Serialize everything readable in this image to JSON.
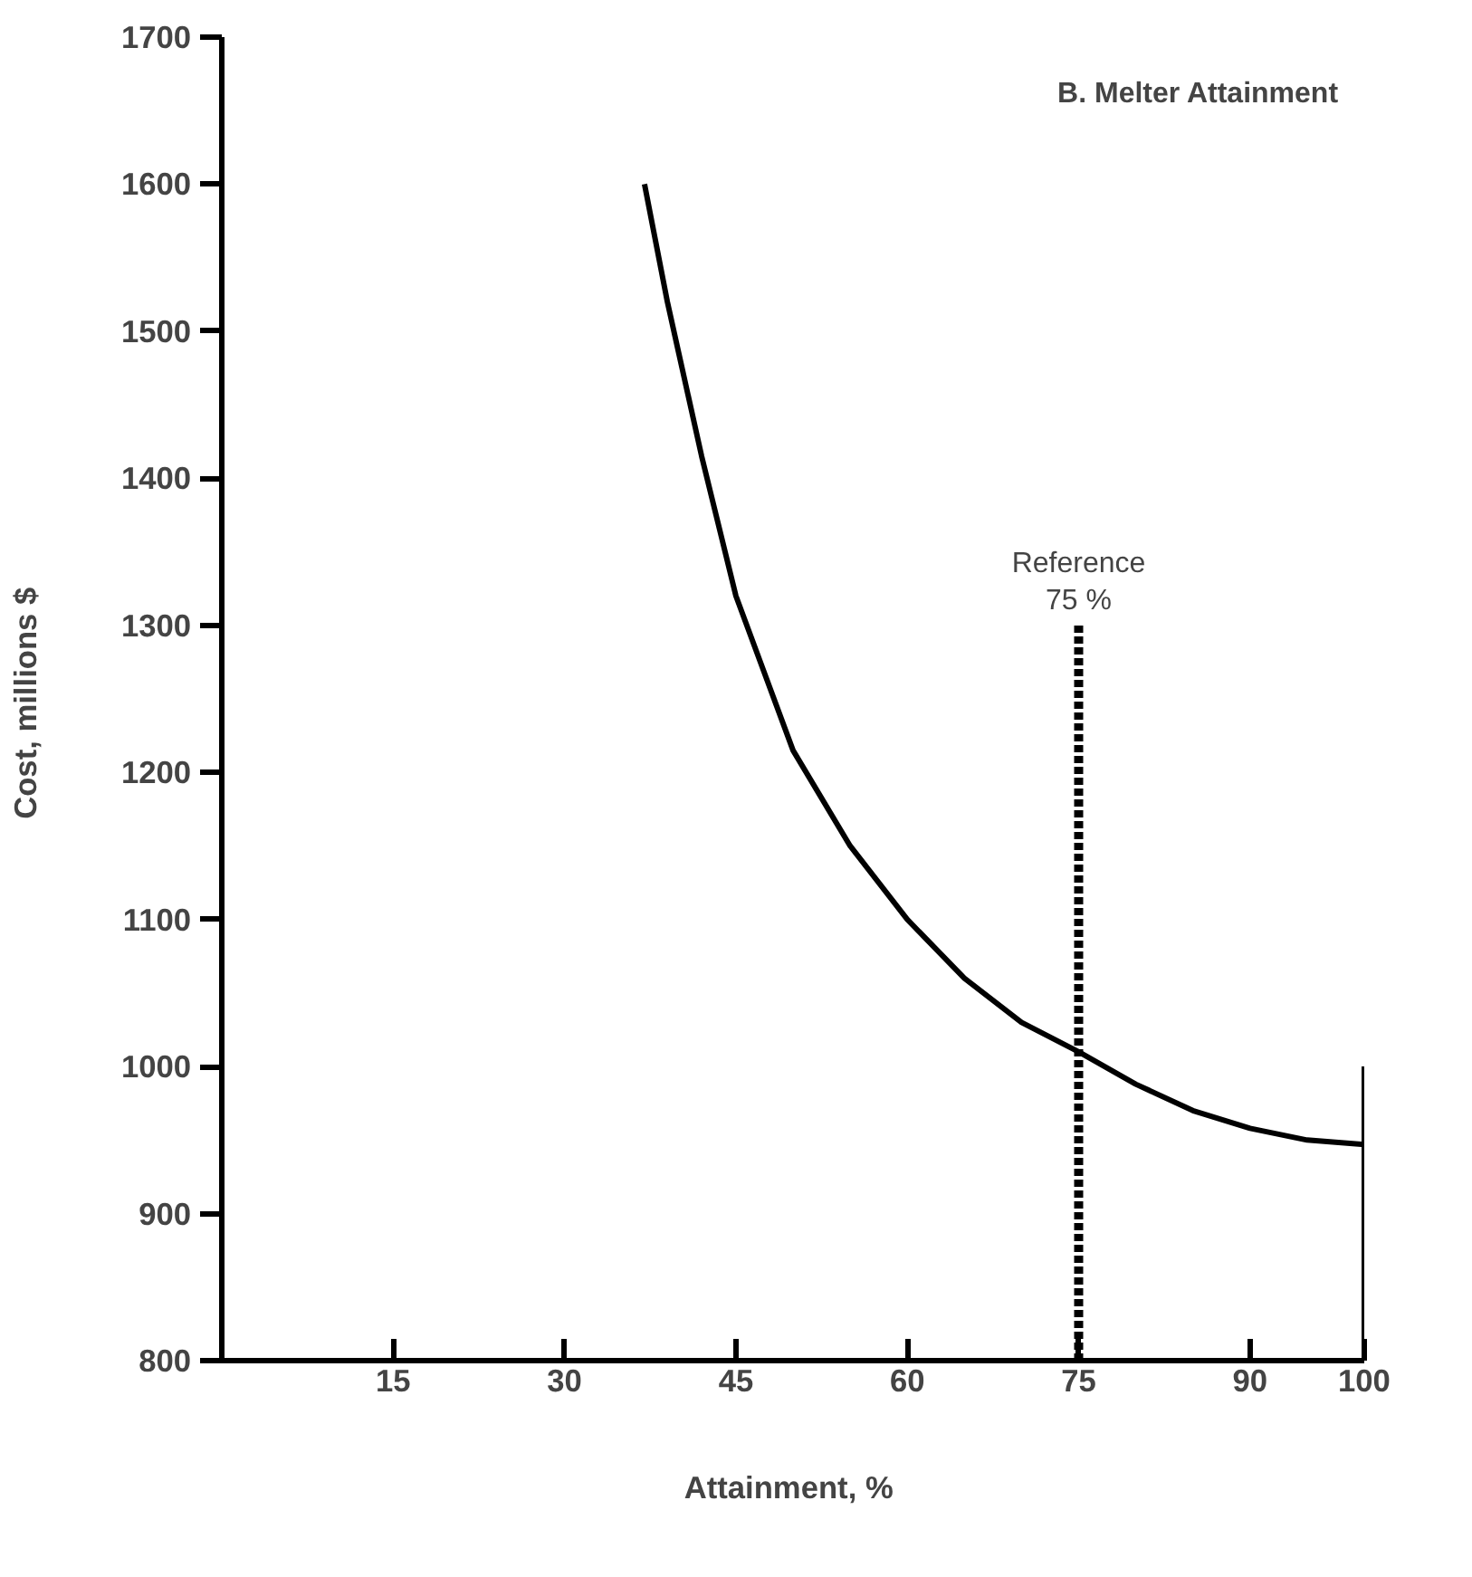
{
  "chart_data": {
    "type": "line",
    "title": "B.   Melter Attainment",
    "xlabel": "Attainment,  %",
    "ylabel": "Cost,  millions $",
    "xlim": [
      0,
      100
    ],
    "ylim": [
      800,
      1700
    ],
    "xticks": [
      15,
      30,
      45,
      60,
      75,
      90,
      100
    ],
    "yticks": [
      800,
      900,
      1000,
      1100,
      1200,
      1300,
      1400,
      1500,
      1600,
      1700
    ],
    "grid": false,
    "marker": "none",
    "series": [
      {
        "color": "#000000",
        "line_style": "solid",
        "x": [
          37,
          38,
          39,
          40,
          42,
          45,
          50,
          55,
          60,
          65,
          70,
          75,
          80,
          85,
          90,
          95,
          100
        ],
        "values": [
          1600,
          1560,
          1520,
          1485,
          1415,
          1320,
          1215,
          1150,
          1100,
          1060,
          1030,
          1010,
          988,
          970,
          958,
          950,
          947
        ]
      },
      {
        "color": "#000000",
        "line_style": "dashed",
        "x": [
          75,
          75
        ],
        "values": [
          800,
          1300
        ]
      },
      {
        "color": "#000000",
        "line_style": "solid",
        "x": [
          100,
          100
        ],
        "values": [
          800,
          1000
        ]
      }
    ],
    "annotations": [
      {
        "text": "Reference\n75 %",
        "x": 75,
        "y": 1300
      }
    ]
  }
}
